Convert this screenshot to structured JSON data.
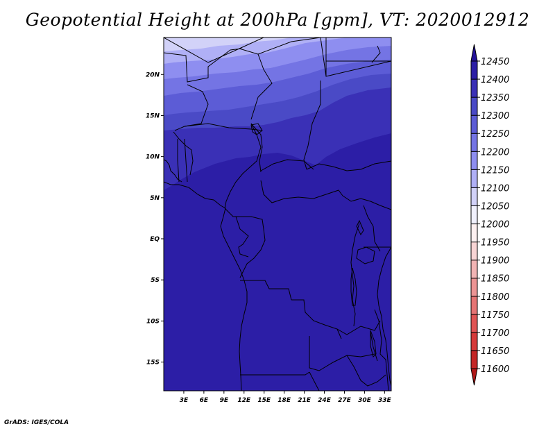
{
  "title": "Geopotential Height at 200hPa [gpm], VT: 2020012912",
  "credit": "GrADS: IGES/COLA",
  "map": {
    "lon_range": [
      0,
      34
    ],
    "lat_range": [
      -18.5,
      24.5
    ],
    "lat_ticks": [
      {
        "value": 20,
        "label": "20N"
      },
      {
        "value": 15,
        "label": "15N"
      },
      {
        "value": 10,
        "label": "10N"
      },
      {
        "value": 5,
        "label": "5N"
      },
      {
        "value": 0,
        "label": "EQ"
      },
      {
        "value": -5,
        "label": "5S"
      },
      {
        "value": -10,
        "label": "10S"
      },
      {
        "value": -15,
        "label": "15S"
      }
    ],
    "lon_ticks": [
      {
        "value": 3,
        "label": "3E"
      },
      {
        "value": 6,
        "label": "6E"
      },
      {
        "value": 9,
        "label": "9E"
      },
      {
        "value": 12,
        "label": "12E"
      },
      {
        "value": 15,
        "label": "15E"
      },
      {
        "value": 18,
        "label": "18E"
      },
      {
        "value": 21,
        "label": "21E"
      },
      {
        "value": 24,
        "label": "24E"
      },
      {
        "value": 27,
        "label": "27E"
      },
      {
        "value": 30,
        "label": "30E"
      },
      {
        "value": 33,
        "label": "33E"
      }
    ]
  },
  "colorbar": {
    "levels": [
      11600,
      11650,
      11700,
      11750,
      11800,
      11850,
      11900,
      11950,
      12000,
      12050,
      12100,
      12150,
      12200,
      12250,
      12300,
      12350,
      12400,
      12450
    ],
    "colors": [
      "#b01818",
      "#c42626",
      "#d63a3a",
      "#e05454",
      "#e67474",
      "#ec9494",
      "#f2b4b4",
      "#f8d4d4",
      "#fdf0f0",
      "#f0f0fc",
      "#d2d2f8",
      "#b0b0f6",
      "#8e8ef0",
      "#7474e4",
      "#5c5cd6",
      "#4a4ac6",
      "#3a30b6",
      "#2c1ea6",
      "#24129a"
    ]
  }
}
